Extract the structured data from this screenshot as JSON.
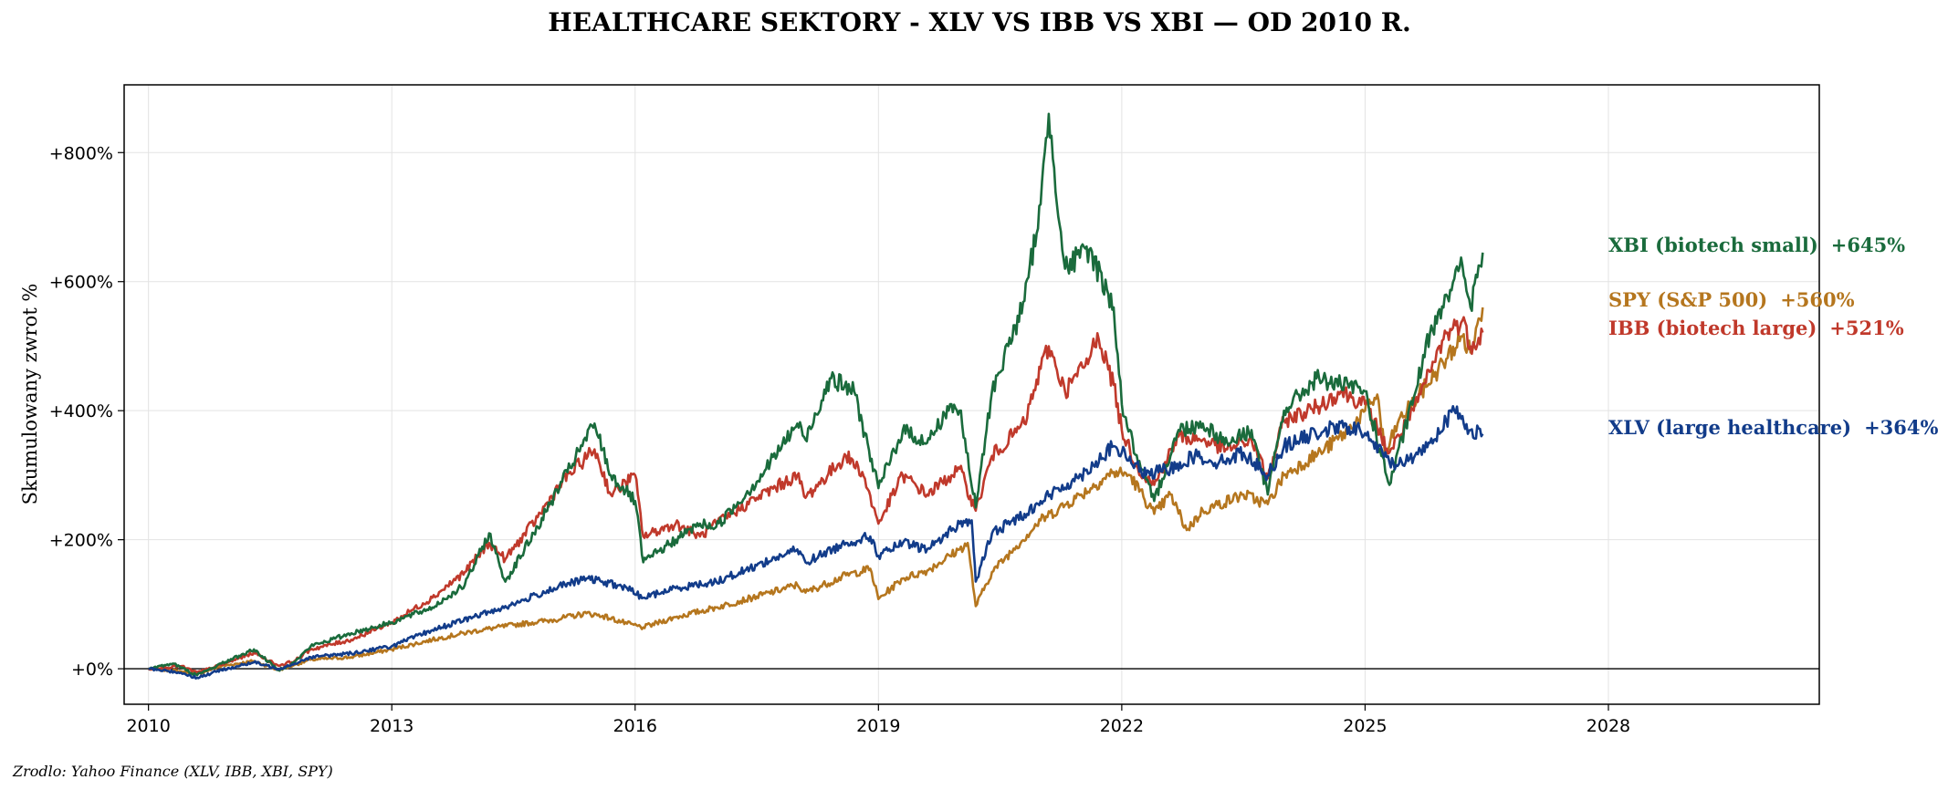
{
  "chart_data": {
    "type": "line",
    "title": "HEALTHCARE SEKTORY - XLV VS IBB VS XBI — OD 2010 R.",
    "xlabel": "",
    "ylabel": "Skumulowany zwrot %",
    "xlim": [
      2009.7,
      2030.6
    ],
    "ylim": [
      -55,
      905
    ],
    "x_ticks": [
      2010,
      2013,
      2016,
      2019,
      2022,
      2025,
      2028
    ],
    "x_tick_labels": [
      "2010",
      "2013",
      "2016",
      "2019",
      "2022",
      "2025",
      "2028"
    ],
    "y_ticks": [
      0,
      200,
      400,
      600,
      800
    ],
    "y_tick_labels": [
      "+0%",
      "+200%",
      "+400%",
      "+600%",
      "+800%"
    ],
    "grid": true,
    "zero_line": true,
    "source": "Zrodlo: Yahoo Finance (XLV, IBB, XBI, SPY)",
    "series": [
      {
        "key": "spy",
        "name": "SPY (S&P 500)",
        "end_label": "+560%",
        "color": "#b5761e",
        "points": [
          [
            2010.0,
            0
          ],
          [
            2010.4,
            -4
          ],
          [
            2010.6,
            -8
          ],
          [
            2010.9,
            4
          ],
          [
            2011.3,
            12
          ],
          [
            2011.6,
            -2
          ],
          [
            2011.8,
            6
          ],
          [
            2012.0,
            14
          ],
          [
            2012.5,
            18
          ],
          [
            2013.0,
            30
          ],
          [
            2013.5,
            45
          ],
          [
            2014.0,
            58
          ],
          [
            2014.5,
            68
          ],
          [
            2015.0,
            76
          ],
          [
            2015.4,
            86
          ],
          [
            2015.6,
            82
          ],
          [
            2015.9,
            70
          ],
          [
            2016.1,
            64
          ],
          [
            2016.5,
            80
          ],
          [
            2017.0,
            95
          ],
          [
            2017.5,
            112
          ],
          [
            2018.0,
            130
          ],
          [
            2018.1,
            118
          ],
          [
            2018.6,
            145
          ],
          [
            2018.9,
            155
          ],
          [
            2019.0,
            108
          ],
          [
            2019.3,
            140
          ],
          [
            2019.6,
            152
          ],
          [
            2020.0,
            185
          ],
          [
            2020.1,
            195
          ],
          [
            2020.2,
            97
          ],
          [
            2020.4,
            150
          ],
          [
            2020.7,
            190
          ],
          [
            2021.0,
            230
          ],
          [
            2021.5,
            270
          ],
          [
            2021.9,
            305
          ],
          [
            2022.1,
            300
          ],
          [
            2022.4,
            240
          ],
          [
            2022.6,
            270
          ],
          [
            2022.8,
            215
          ],
          [
            2023.0,
            245
          ],
          [
            2023.5,
            270
          ],
          [
            2023.8,
            255
          ],
          [
            2024.0,
            300
          ],
          [
            2024.5,
            340
          ],
          [
            2024.8,
            370
          ],
          [
            2025.0,
            400
          ],
          [
            2025.15,
            425
          ],
          [
            2025.25,
            330
          ],
          [
            2025.4,
            380
          ],
          [
            2025.7,
            430
          ],
          [
            2026.0,
            480
          ],
          [
            2026.2,
            515
          ],
          [
            2026.3,
            490
          ],
          [
            2026.45,
            560
          ]
        ]
      },
      {
        "key": "ibb",
        "name": "IBB (biotech large)",
        "end_label": "+521%",
        "color": "#c0392b",
        "points": [
          [
            2010.0,
            0
          ],
          [
            2010.4,
            4
          ],
          [
            2010.6,
            -6
          ],
          [
            2010.9,
            6
          ],
          [
            2011.3,
            25
          ],
          [
            2011.6,
            5
          ],
          [
            2011.8,
            12
          ],
          [
            2012.0,
            30
          ],
          [
            2012.5,
            45
          ],
          [
            2013.0,
            72
          ],
          [
            2013.5,
            110
          ],
          [
            2013.9,
            150
          ],
          [
            2014.2,
            195
          ],
          [
            2014.4,
            170
          ],
          [
            2014.8,
            235
          ],
          [
            2015.1,
            290
          ],
          [
            2015.5,
            340
          ],
          [
            2015.7,
            270
          ],
          [
            2016.0,
            300
          ],
          [
            2016.1,
            205
          ],
          [
            2016.5,
            225
          ],
          [
            2016.8,
            205
          ],
          [
            2017.0,
            225
          ],
          [
            2017.5,
            265
          ],
          [
            2018.0,
            300
          ],
          [
            2018.1,
            265
          ],
          [
            2018.6,
            330
          ],
          [
            2018.8,
            305
          ],
          [
            2019.0,
            225
          ],
          [
            2019.3,
            300
          ],
          [
            2019.6,
            270
          ],
          [
            2019.9,
            300
          ],
          [
            2020.0,
            310
          ],
          [
            2020.2,
            245
          ],
          [
            2020.4,
            330
          ],
          [
            2020.8,
            380
          ],
          [
            2021.0,
            465
          ],
          [
            2021.1,
            500
          ],
          [
            2021.3,
            430
          ],
          [
            2021.6,
            480
          ],
          [
            2021.7,
            520
          ],
          [
            2021.9,
            440
          ],
          [
            2022.0,
            370
          ],
          [
            2022.2,
            310
          ],
          [
            2022.4,
            285
          ],
          [
            2022.7,
            360
          ],
          [
            2023.0,
            355
          ],
          [
            2023.3,
            340
          ],
          [
            2023.6,
            355
          ],
          [
            2023.8,
            295
          ],
          [
            2024.0,
            385
          ],
          [
            2024.4,
            405
          ],
          [
            2024.7,
            430
          ],
          [
            2025.0,
            410
          ],
          [
            2025.2,
            360
          ],
          [
            2025.3,
            335
          ],
          [
            2025.6,
            400
          ],
          [
            2025.8,
            460
          ],
          [
            2026.0,
            520
          ],
          [
            2026.2,
            540
          ],
          [
            2026.3,
            500
          ],
          [
            2026.45,
            521
          ]
        ]
      },
      {
        "key": "xbi",
        "name": "XBI (biotech small)",
        "end_label": "+645%",
        "color": "#1a6b3c",
        "points": [
          [
            2010.0,
            0
          ],
          [
            2010.3,
            8
          ],
          [
            2010.6,
            -10
          ],
          [
            2010.9,
            8
          ],
          [
            2011.3,
            30
          ],
          [
            2011.6,
            -2
          ],
          [
            2011.8,
            10
          ],
          [
            2012.0,
            35
          ],
          [
            2012.5,
            55
          ],
          [
            2013.0,
            72
          ],
          [
            2013.5,
            95
          ],
          [
            2013.9,
            130
          ],
          [
            2014.2,
            210
          ],
          [
            2014.4,
            135
          ],
          [
            2014.8,
            220
          ],
          [
            2015.1,
            290
          ],
          [
            2015.5,
            380
          ],
          [
            2015.7,
            300
          ],
          [
            2016.0,
            260
          ],
          [
            2016.1,
            165
          ],
          [
            2016.5,
            200
          ],
          [
            2016.8,
            225
          ],
          [
            2017.0,
            220
          ],
          [
            2017.5,
            290
          ],
          [
            2018.0,
            380
          ],
          [
            2018.1,
            355
          ],
          [
            2018.4,
            450
          ],
          [
            2018.7,
            430
          ],
          [
            2019.0,
            280
          ],
          [
            2019.3,
            370
          ],
          [
            2019.6,
            350
          ],
          [
            2019.9,
            410
          ],
          [
            2020.0,
            400
          ],
          [
            2020.2,
            250
          ],
          [
            2020.4,
            430
          ],
          [
            2020.8,
            570
          ],
          [
            2021.0,
            720
          ],
          [
            2021.1,
            860
          ],
          [
            2021.3,
            620
          ],
          [
            2021.6,
            650
          ],
          [
            2021.9,
            560
          ],
          [
            2022.0,
            410
          ],
          [
            2022.2,
            320
          ],
          [
            2022.4,
            260
          ],
          [
            2022.7,
            370
          ],
          [
            2023.0,
            380
          ],
          [
            2023.3,
            350
          ],
          [
            2023.6,
            370
          ],
          [
            2023.8,
            270
          ],
          [
            2024.0,
            400
          ],
          [
            2024.4,
            450
          ],
          [
            2024.7,
            440
          ],
          [
            2025.0,
            430
          ],
          [
            2025.2,
            330
          ],
          [
            2025.3,
            285
          ],
          [
            2025.6,
            420
          ],
          [
            2025.8,
            520
          ],
          [
            2026.0,
            580
          ],
          [
            2026.2,
            625
          ],
          [
            2026.3,
            560
          ],
          [
            2026.45,
            645
          ]
        ]
      },
      {
        "key": "xlv",
        "name": "XLV (large healthcare)",
        "end_label": "+364%",
        "color": "#123c8a",
        "points": [
          [
            2010.0,
            0
          ],
          [
            2010.4,
            -6
          ],
          [
            2010.6,
            -14
          ],
          [
            2010.9,
            -2
          ],
          [
            2011.3,
            10
          ],
          [
            2011.6,
            0
          ],
          [
            2011.8,
            8
          ],
          [
            2012.0,
            18
          ],
          [
            2012.5,
            24
          ],
          [
            2013.0,
            35
          ],
          [
            2013.5,
            60
          ],
          [
            2014.0,
            80
          ],
          [
            2014.5,
            100
          ],
          [
            2015.0,
            125
          ],
          [
            2015.4,
            140
          ],
          [
            2015.6,
            135
          ],
          [
            2015.9,
            125
          ],
          [
            2016.1,
            110
          ],
          [
            2016.5,
            125
          ],
          [
            2017.0,
            135
          ],
          [
            2017.5,
            160
          ],
          [
            2018.0,
            185
          ],
          [
            2018.1,
            165
          ],
          [
            2018.6,
            195
          ],
          [
            2018.9,
            205
          ],
          [
            2019.0,
            175
          ],
          [
            2019.3,
            195
          ],
          [
            2019.6,
            185
          ],
          [
            2020.0,
            225
          ],
          [
            2020.15,
            230
          ],
          [
            2020.2,
            135
          ],
          [
            2020.4,
            210
          ],
          [
            2020.8,
            240
          ],
          [
            2021.0,
            260
          ],
          [
            2021.5,
            300
          ],
          [
            2021.9,
            345
          ],
          [
            2022.0,
            335
          ],
          [
            2022.3,
            300
          ],
          [
            2022.6,
            310
          ],
          [
            2022.9,
            330
          ],
          [
            2023.2,
            320
          ],
          [
            2023.5,
            335
          ],
          [
            2023.8,
            300
          ],
          [
            2024.0,
            345
          ],
          [
            2024.5,
            370
          ],
          [
            2024.8,
            375
          ],
          [
            2025.0,
            365
          ],
          [
            2025.3,
            320
          ],
          [
            2025.5,
            320
          ],
          [
            2025.8,
            350
          ],
          [
            2026.0,
            385
          ],
          [
            2026.1,
            400
          ],
          [
            2026.3,
            370
          ],
          [
            2026.45,
            364
          ]
        ]
      }
    ]
  }
}
